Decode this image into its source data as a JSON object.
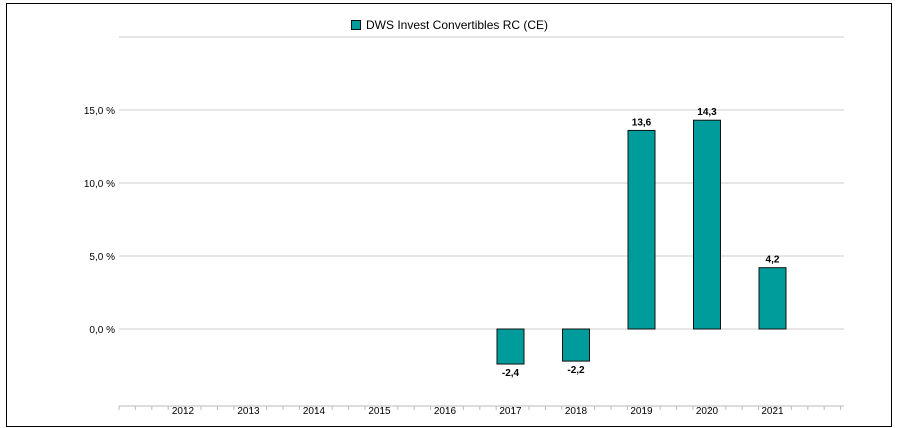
{
  "chart_data": {
    "type": "bar",
    "categories": [
      "2012",
      "2013",
      "2014",
      "2015",
      "2016",
      "2017",
      "2018",
      "2019",
      "2020",
      "2021"
    ],
    "series": [
      {
        "name": "DWS Invest Convertibles  RC (CE)",
        "values": [
          null,
          null,
          null,
          null,
          null,
          -2.4,
          -2.2,
          13.6,
          14.3,
          4.2
        ],
        "labels": [
          "",
          "",
          "",
          "",
          "",
          "-2,4",
          "-2,2",
          "13,6",
          "14,3",
          "4,2"
        ]
      }
    ],
    "y_ticks": [
      0,
      5,
      10,
      15
    ],
    "y_tick_labels": [
      "0,0 %",
      "5,0 %",
      "10,0 %",
      "15,0 %"
    ],
    "ylim": [
      -4.6,
      20
    ],
    "grid": true,
    "legend_position": "top-center",
    "colors": {
      "bar": "#009b9b",
      "bar_stroke": "#111111",
      "grid": "#cccccc"
    }
  }
}
